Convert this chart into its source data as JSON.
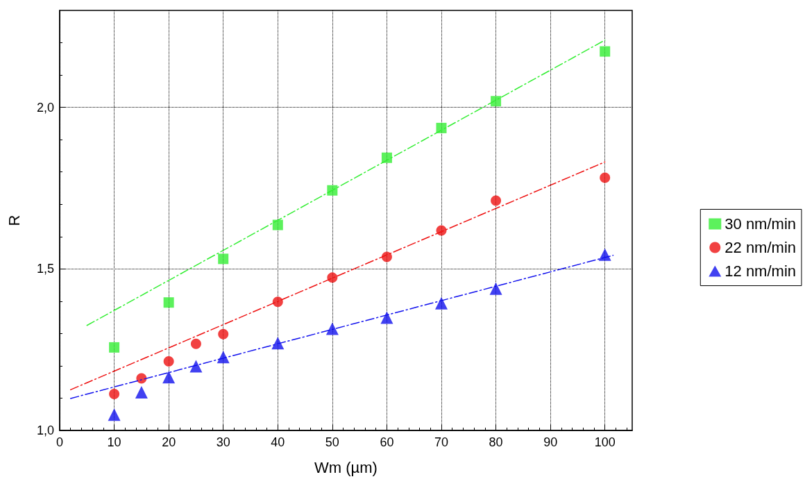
{
  "chart_data": {
    "type": "scatter",
    "xlabel": "Wm (µm)",
    "ylabel": "R",
    "xlim": [
      0,
      105
    ],
    "xticks": [
      0,
      10,
      20,
      30,
      40,
      50,
      60,
      70,
      80,
      90,
      100
    ],
    "ylim": [
      1.0,
      2.3
    ],
    "yticks": [
      {
        "value": 1.0,
        "label": "1,0"
      },
      {
        "value": 1.5,
        "label": "1,5"
      },
      {
        "value": 2.0,
        "label": "2,0"
      }
    ],
    "grid": true,
    "legend": "right",
    "series": [
      {
        "name": "30 nm/min",
        "color": "#33ee33",
        "marker": "square",
        "x": [
          10,
          20,
          30,
          40,
          50,
          60,
          70,
          80,
          100
        ],
        "values": [
          1.257,
          1.396,
          1.531,
          1.636,
          1.743,
          1.844,
          1.936,
          2.019,
          2.173
        ]
      },
      {
        "name": "22 nm/min",
        "color": "#ee1111",
        "marker": "circle",
        "x": [
          10,
          15,
          20,
          25,
          30,
          40,
          50,
          60,
          70,
          80,
          100
        ],
        "values": [
          1.113,
          1.161,
          1.214,
          1.268,
          1.298,
          1.398,
          1.473,
          1.537,
          1.619,
          1.711,
          1.782
        ]
      },
      {
        "name": "12 nm/min",
        "color": "#1111ee",
        "marker": "triangle",
        "x": [
          10,
          15,
          20,
          25,
          30,
          40,
          50,
          60,
          70,
          80,
          100
        ],
        "values": [
          1.049,
          1.118,
          1.165,
          1.199,
          1.227,
          1.27,
          1.315,
          1.349,
          1.394,
          1.439,
          1.544
        ]
      },
      {
        "type": "line",
        "color": "#33ee33",
        "marker": "none",
        "line_style": "dashed",
        "x": [
          5,
          100
        ],
        "values": [
          1.325,
          2.208
        ]
      },
      {
        "type": "line",
        "color": "#ee1111",
        "marker": "none",
        "line_style": "dashed",
        "x": [
          2,
          100
        ],
        "values": [
          1.126,
          1.831
        ]
      },
      {
        "type": "line",
        "color": "#1111ee",
        "marker": "none",
        "line_style": "dashed",
        "x": [
          2,
          101.5
        ],
        "values": [
          1.099,
          1.542
        ]
      }
    ]
  }
}
